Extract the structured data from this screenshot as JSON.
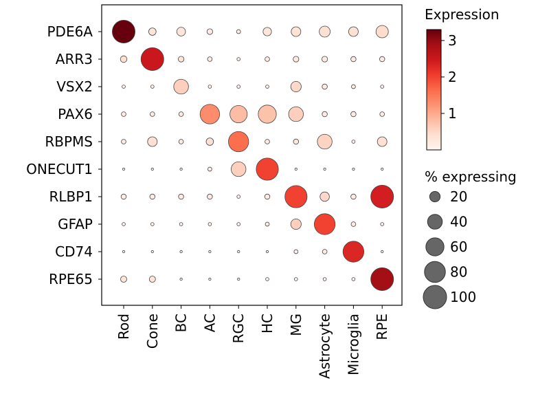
{
  "chart_data": {
    "type": "dotplot",
    "genes": [
      "PDE6A",
      "ARR3",
      "VSX2",
      "PAX6",
      "RBPMS",
      "ONECUT1",
      "RLBP1",
      "GFAP",
      "CD74",
      "RPE65"
    ],
    "cell_types": [
      "Rod",
      "Cone",
      "BC",
      "AC",
      "RGC",
      "HC",
      "MG",
      "Astrocyte",
      "Microglia",
      "RPE"
    ],
    "expression": [
      [
        3.3,
        0.3,
        0.3,
        0.2,
        0.15,
        0.3,
        0.35,
        0.4,
        0.4,
        0.45
      ],
      [
        0.4,
        2.5,
        0.3,
        0.2,
        0.15,
        0.2,
        0.25,
        0.2,
        0.2,
        0.2
      ],
      [
        0.1,
        0.1,
        0.6,
        0.1,
        0.1,
        0.1,
        0.5,
        0.2,
        0.15,
        0.1
      ],
      [
        0.2,
        0.2,
        0.2,
        1.3,
        0.8,
        0.75,
        0.6,
        0.2,
        0.2,
        0.15
      ],
      [
        0.2,
        0.4,
        0.2,
        0.4,
        1.6,
        0.2,
        0.25,
        0.55,
        0.1,
        0.4
      ],
      [
        0.05,
        0.05,
        0.05,
        0.1,
        0.6,
        2.0,
        0.05,
        0.05,
        0.05,
        0.05
      ],
      [
        0.2,
        0.2,
        0.2,
        0.2,
        0.1,
        0.2,
        2.0,
        0.5,
        0.2,
        2.4
      ],
      [
        0.1,
        0.1,
        0.1,
        0.1,
        0.1,
        0.2,
        0.6,
        2.0,
        0.2,
        0.1
      ],
      [
        0.05,
        0.05,
        0.05,
        0.05,
        0.05,
        0.05,
        0.1,
        0.2,
        2.3,
        0.05
      ],
      [
        0.3,
        0.3,
        0.05,
        0.05,
        0.05,
        0.1,
        0.1,
        0.1,
        0.1,
        2.9
      ]
    ],
    "pct_expressing": [
      [
        95,
        10,
        14,
        6,
        3,
        13,
        17,
        22,
        17,
        28
      ],
      [
        8,
        95,
        6,
        4,
        2,
        4,
        6,
        6,
        5,
        5
      ],
      [
        2,
        2,
        40,
        2,
        2,
        2,
        20,
        5,
        3,
        2
      ],
      [
        4,
        4,
        4,
        70,
        55,
        60,
        40,
        5,
        5,
        4
      ],
      [
        4,
        17,
        4,
        10,
        75,
        4,
        5,
        40,
        2,
        17
      ],
      [
        1,
        1,
        1,
        3,
        40,
        90,
        1,
        1,
        1,
        1
      ],
      [
        5,
        5,
        5,
        5,
        2,
        5,
        90,
        16,
        5,
        95
      ],
      [
        2,
        2,
        2,
        2,
        2,
        3,
        20,
        80,
        4,
        2
      ],
      [
        1,
        1,
        1,
        1,
        1,
        1,
        3,
        4,
        80,
        1
      ],
      [
        7,
        7,
        1,
        1,
        1,
        2,
        2,
        2,
        2,
        95
      ]
    ],
    "colorbar": {
      "title": "Expression",
      "range": [
        0,
        3.3
      ],
      "ticks": [
        1,
        2,
        3
      ],
      "colormap": "Reds"
    },
    "size_legend": {
      "title": "% expressing",
      "values": [
        20,
        40,
        60,
        80,
        100
      ]
    }
  }
}
